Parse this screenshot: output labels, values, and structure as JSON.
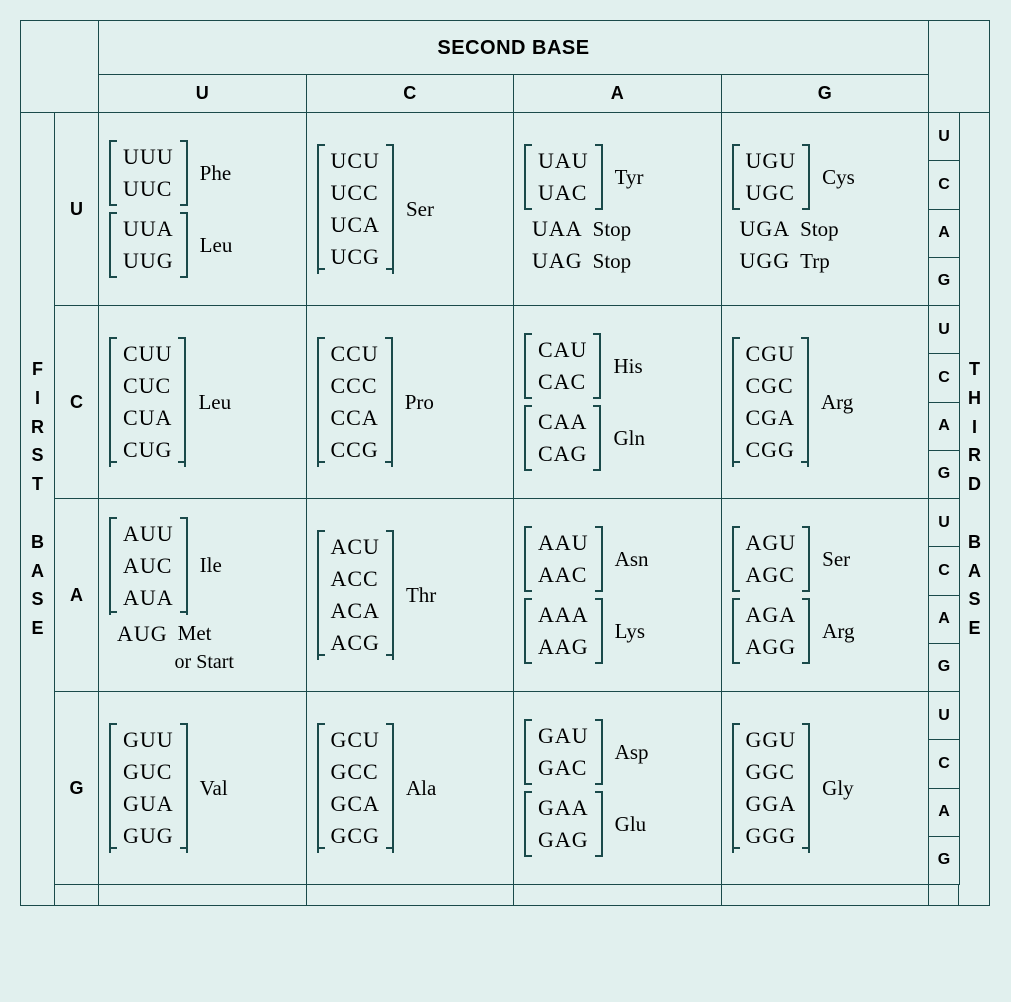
{
  "headers": {
    "second_base_title": "SECOND BASE",
    "first_base_title": "FIRST BASE",
    "third_base_title": "THIRD BASE",
    "second_base_cols": [
      "U",
      "C",
      "A",
      "G"
    ],
    "first_base_rows": [
      "U",
      "C",
      "A",
      "G"
    ],
    "third_base_labels": [
      "U",
      "C",
      "A",
      "G"
    ]
  },
  "colors": {
    "background": "#e1f0ee",
    "border": "#1a4a4a",
    "text": "#1a2a2a"
  },
  "typography": {
    "header_font": "Helvetica, Arial, sans-serif",
    "body_font": "Georgia, Times New Roman, serif",
    "header_title_size_pt": 15,
    "col_label_size_pt": 14,
    "codon_size_pt": 16,
    "aa_size_pt": 15
  },
  "cells": {
    "UU": [
      {
        "codons": [
          "UUU",
          "UUC"
        ],
        "aa": "Phe",
        "bracket": true
      },
      {
        "codons": [
          "UUA",
          "UUG"
        ],
        "aa": "Leu",
        "bracket": true
      }
    ],
    "UC": [
      {
        "codons": [
          "UCU",
          "UCC",
          "UCA",
          "UCG"
        ],
        "aa": "Ser",
        "bracket": true
      }
    ],
    "UA": [
      {
        "codons": [
          "UAU",
          "UAC"
        ],
        "aa": "Tyr",
        "bracket": true
      },
      {
        "codons": [
          "UAA"
        ],
        "aa": "Stop",
        "bracket": false
      },
      {
        "codons": [
          "UAG"
        ],
        "aa": "Stop",
        "bracket": false
      }
    ],
    "UG": [
      {
        "codons": [
          "UGU",
          "UGC"
        ],
        "aa": "Cys",
        "bracket": true
      },
      {
        "codons": [
          "UGA"
        ],
        "aa": "Stop",
        "bracket": false
      },
      {
        "codons": [
          "UGG"
        ],
        "aa": "Trp",
        "bracket": false
      }
    ],
    "CU": [
      {
        "codons": [
          "CUU",
          "CUC",
          "CUA",
          "CUG"
        ],
        "aa": "Leu",
        "bracket": true
      }
    ],
    "CC": [
      {
        "codons": [
          "CCU",
          "CCC",
          "CCA",
          "CCG"
        ],
        "aa": "Pro",
        "bracket": true
      }
    ],
    "CA": [
      {
        "codons": [
          "CAU",
          "CAC"
        ],
        "aa": "His",
        "bracket": true
      },
      {
        "codons": [
          "CAA",
          "CAG"
        ],
        "aa": "Gln",
        "bracket": true
      }
    ],
    "CG": [
      {
        "codons": [
          "CGU",
          "CGC",
          "CGA",
          "CGG"
        ],
        "aa": "Arg",
        "bracket": true
      }
    ],
    "AU": [
      {
        "codons": [
          "AUU",
          "AUC",
          "AUA"
        ],
        "aa": "Ile",
        "bracket": true
      },
      {
        "codons": [
          "AUG"
        ],
        "aa": "Met",
        "sub": "or Start",
        "bracket": false
      }
    ],
    "AC": [
      {
        "codons": [
          "ACU",
          "ACC",
          "ACA",
          "ACG"
        ],
        "aa": "Thr",
        "bracket": true
      }
    ],
    "AA": [
      {
        "codons": [
          "AAU",
          "AAC"
        ],
        "aa": "Asn",
        "bracket": true
      },
      {
        "codons": [
          "AAA",
          "AAG"
        ],
        "aa": "Lys",
        "bracket": true
      }
    ],
    "AG": [
      {
        "codons": [
          "AGU",
          "AGC"
        ],
        "aa": "Ser",
        "bracket": true
      },
      {
        "codons": [
          "AGA",
          "AGG"
        ],
        "aa": "Arg",
        "bracket": true
      }
    ],
    "GU": [
      {
        "codons": [
          "GUU",
          "GUC",
          "GUA",
          "GUG"
        ],
        "aa": "Val",
        "bracket": true
      }
    ],
    "GC": [
      {
        "codons": [
          "GCU",
          "GCC",
          "GCA",
          "GCG"
        ],
        "aa": "Ala",
        "bracket": true
      }
    ],
    "GA": [
      {
        "codons": [
          "GAU",
          "GAC"
        ],
        "aa": "Asp",
        "bracket": true
      },
      {
        "codons": [
          "GAA",
          "GAG"
        ],
        "aa": "Glu",
        "bracket": true
      }
    ],
    "GG": [
      {
        "codons": [
          "GGU",
          "GGC",
          "GGA",
          "GGG"
        ],
        "aa": "Gly",
        "bracket": true
      }
    ]
  }
}
